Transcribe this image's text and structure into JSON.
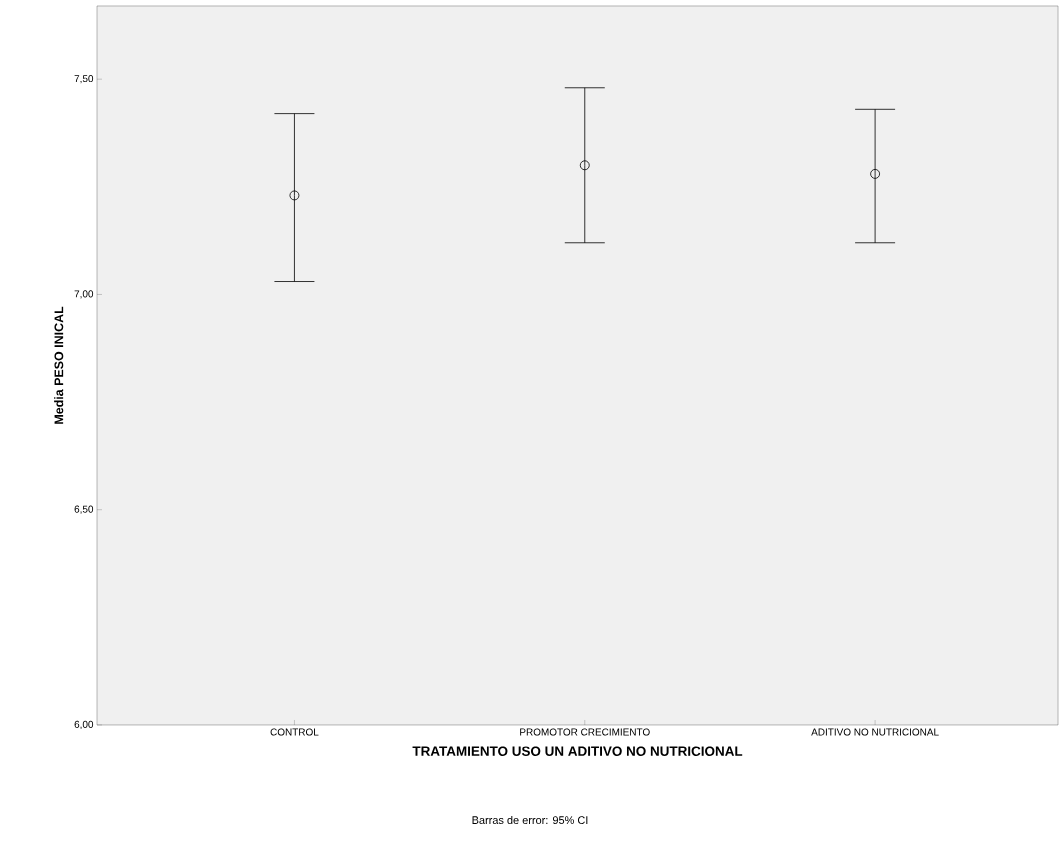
{
  "chart_data": {
    "type": "scatter",
    "xlabel": "TRATAMIENTO USO UN ADITIVO NO NUTRICIONAL",
    "ylabel": "Media PESO INICAL",
    "annotations": [
      "Barras de error: 95% CI"
    ],
    "categories": [
      "CONTROL",
      "PROMOTOR CRECIMIENTO",
      "ADITIVO NO NUTRICIONAL"
    ],
    "values": [
      7.23,
      7.3,
      7.28
    ],
    "errors": [
      [
        7.03,
        7.42
      ],
      [
        7.12,
        7.48
      ],
      [
        7.12,
        7.43
      ]
    ],
    "color": "#000000",
    "marker": "circle",
    "ylim": [
      6.0,
      7.67
    ],
    "yticks": [
      {
        "value": 6.0,
        "label": "6,00"
      },
      {
        "value": 6.5,
        "label": "6,50"
      },
      {
        "value": 7.0,
        "label": "7,00"
      },
      {
        "value": 7.5,
        "label": "7,50"
      }
    ],
    "grid": false
  }
}
